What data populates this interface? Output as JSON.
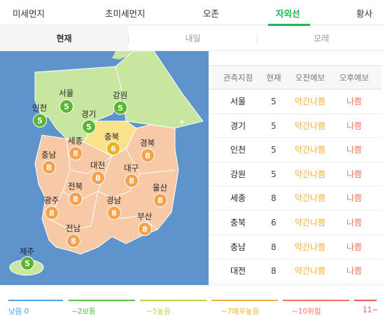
{
  "tabs": [
    {
      "label": "미세먼지",
      "active": false
    },
    {
      "label": "초미세먼지",
      "active": false
    },
    {
      "label": "오존",
      "active": false
    },
    {
      "label": "자외선",
      "active": true
    },
    {
      "label": "황사",
      "active": false
    }
  ],
  "day_tabs": [
    {
      "label": "현재",
      "active": true
    },
    {
      "label": "내일",
      "active": false
    },
    {
      "label": "모레",
      "active": false
    }
  ],
  "map": {
    "regions": [
      {
        "name": "서울",
        "value": "5",
        "level": "green"
      },
      {
        "name": "인천",
        "value": "5",
        "level": "green"
      },
      {
        "name": "경기",
        "value": "5",
        "level": "green"
      },
      {
        "name": "강원",
        "value": "5",
        "level": "green"
      },
      {
        "name": "세종",
        "value": "8",
        "level": "orange"
      },
      {
        "name": "충북",
        "value": "6",
        "level": "yellow"
      },
      {
        "name": "경북",
        "value": "8",
        "level": "orange"
      },
      {
        "name": "충남",
        "value": "8",
        "level": "orange"
      },
      {
        "name": "대전",
        "value": "8",
        "level": "orange"
      },
      {
        "name": "대구",
        "value": "8",
        "level": "orange"
      },
      {
        "name": "전북",
        "value": "8",
        "level": "orange"
      },
      {
        "name": "울산",
        "value": "8",
        "level": "orange"
      },
      {
        "name": "광주",
        "value": "8",
        "level": "orange"
      },
      {
        "name": "경남",
        "value": "8",
        "level": "orange"
      },
      {
        "name": "부산",
        "value": "8",
        "level": "orange"
      },
      {
        "name": "전남",
        "value": "8",
        "level": "orange"
      },
      {
        "name": "제주",
        "value": "5",
        "level": "green"
      }
    ],
    "colors": {
      "sea": "#5e94cc",
      "green_land": "#c9e6a1",
      "orange_land": "#f8c9a6",
      "yellow_land": "#f9e28a"
    }
  },
  "table": {
    "headers": [
      "관측지점",
      "현재",
      "오전예보",
      "오후예보"
    ],
    "rows": [
      {
        "name": "서울",
        "now": "5",
        "am": "약간나쁨",
        "pm": "나쁨"
      },
      {
        "name": "경기",
        "now": "5",
        "am": "약간나쁨",
        "pm": "나쁨"
      },
      {
        "name": "인천",
        "now": "5",
        "am": "약간나쁨",
        "pm": "나쁨"
      },
      {
        "name": "강원",
        "now": "5",
        "am": "약간나쁨",
        "pm": "나쁨"
      },
      {
        "name": "세종",
        "now": "8",
        "am": "약간나쁨",
        "pm": "나쁨"
      },
      {
        "name": "충북",
        "now": "6",
        "am": "약간나쁨",
        "pm": "나쁨"
      },
      {
        "name": "충남",
        "now": "8",
        "am": "약간나쁨",
        "pm": "나쁨"
      },
      {
        "name": "대전",
        "now": "8",
        "am": "약간나쁨",
        "pm": "나쁨"
      }
    ]
  },
  "legend": [
    {
      "label": "낮음 0",
      "color": "#4aa3e8"
    },
    {
      "label": "~2보통",
      "color": "#5bbf4c"
    },
    {
      "label": "~5높음",
      "color": "#c4d04e"
    },
    {
      "label": "~7매우높음",
      "color": "#f2b13c"
    },
    {
      "label": "~10위험",
      "color": "#f0755f"
    },
    {
      "label": "11~",
      "color": "#e85a5a"
    }
  ]
}
